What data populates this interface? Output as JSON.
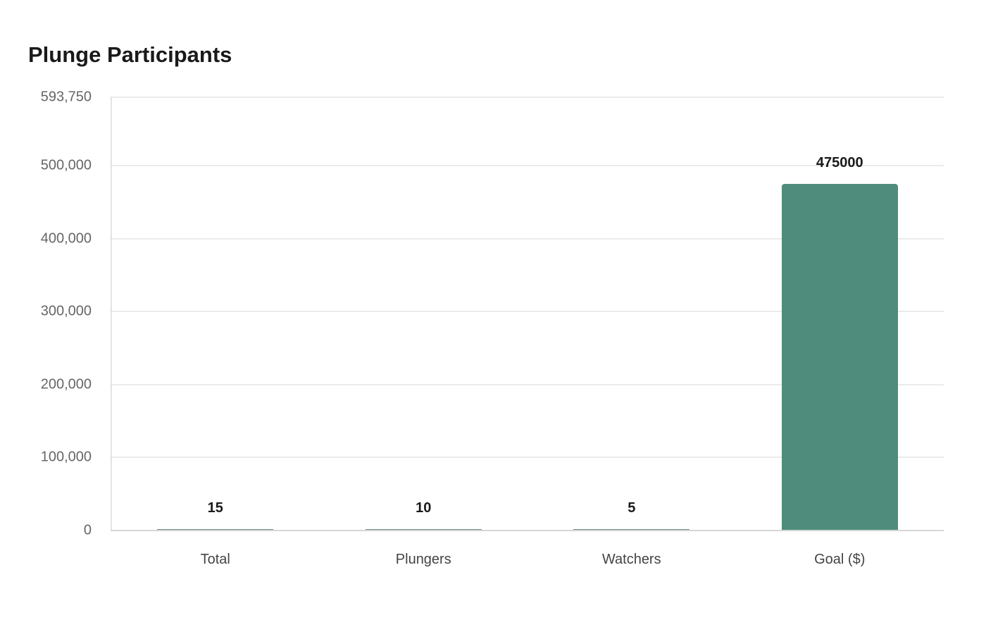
{
  "chart_data": {
    "type": "bar",
    "title": "Plunge Participants",
    "categories": [
      "Total",
      "Plungers",
      "Watchers",
      "Goal ($)"
    ],
    "values": [
      15,
      10,
      5,
      475000
    ],
    "value_labels": [
      "15",
      "10",
      "5",
      "475000"
    ],
    "xlabel": "",
    "ylabel": "",
    "ylim": [
      0,
      593750
    ],
    "yticks": [
      0,
      100000,
      200000,
      300000,
      400000,
      500000,
      593750
    ],
    "ytick_labels": [
      "0",
      "100,000",
      "200,000",
      "300,000",
      "400,000",
      "500,000",
      "593,750"
    ],
    "grid": true,
    "legend": "none",
    "bar_color": "#4f8c7b"
  }
}
